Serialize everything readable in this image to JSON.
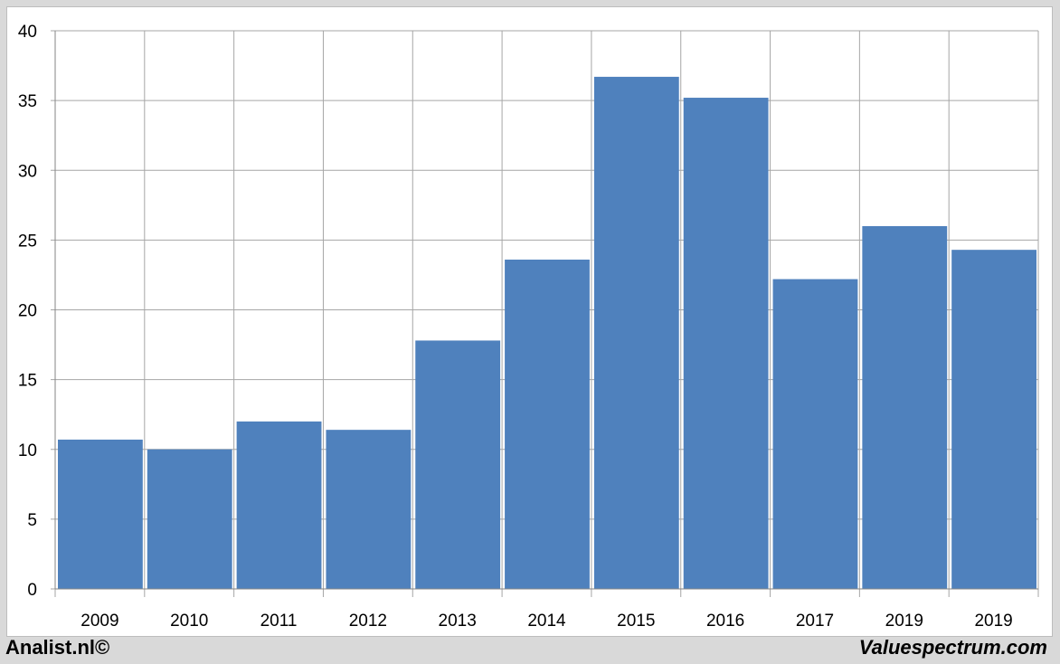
{
  "chart_data": {
    "type": "bar",
    "categories": [
      "2009",
      "2010",
      "2011",
      "2012",
      "2013",
      "2014",
      "2015",
      "2016",
      "2017",
      "2019",
      "2019"
    ],
    "values": [
      10.7,
      10.0,
      12.0,
      11.4,
      17.8,
      23.6,
      36.7,
      35.2,
      22.2,
      26.0,
      24.3
    ],
    "ylim": [
      0,
      40
    ],
    "yticks": [
      0,
      5,
      10,
      15,
      20,
      25,
      30,
      35,
      40
    ],
    "grid": true,
    "title": "",
    "xlabel": "",
    "ylabel": "",
    "bar_color": "#4f81bd",
    "grid_color": "#a6a6a6"
  },
  "footer": {
    "left": "Analist.nl©",
    "right": "Valuespectrum.com"
  }
}
